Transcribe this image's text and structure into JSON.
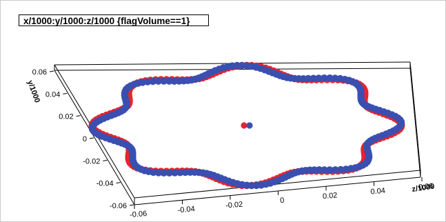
{
  "window": {
    "title": "x/1000:y/1000:z/1000 {flagVolume==1}"
  },
  "colors": {
    "red_series": "#e8242b",
    "blue_series": "#3a4fb0",
    "frame": "#000000"
  },
  "chart_data": {
    "type": "scatter",
    "title": "x/1000:y/1000:z/1000 {flagVolume==1}",
    "projection": "3d",
    "axes": {
      "y": {
        "label": "y/1000",
        "range": [
          -0.06,
          0.06
        ],
        "ticks": [
          "0.06",
          "0.04",
          "0.02",
          "0",
          "-0.02",
          "-0.04",
          "-0.06"
        ]
      },
      "x": {
        "label": "",
        "range": [
          -0.06,
          0.06
        ],
        "ticks": [
          "-0.06",
          "-0.04",
          "-0.02",
          "0",
          "0.02",
          "0.04",
          "0.06"
        ]
      },
      "z": {
        "label": "z/1000",
        "range": [
          -0.06,
          0.06
        ]
      }
    },
    "grid": false,
    "legend": "none",
    "series": [
      {
        "color": "#e8242b",
        "shape": "ring",
        "radius": 0.045,
        "modulation": 0.004,
        "lobes": 8,
        "phase": 0.0,
        "center_points": [
          [
            0.0,
            0.0,
            0.0
          ]
        ]
      },
      {
        "color": "#3a4fb0",
        "shape": "ring",
        "radius": 0.045,
        "modulation": 0.004,
        "lobes": 8,
        "phase": 0.39,
        "center_points": [
          [
            0.0,
            0.0,
            0.0
          ]
        ]
      }
    ]
  }
}
